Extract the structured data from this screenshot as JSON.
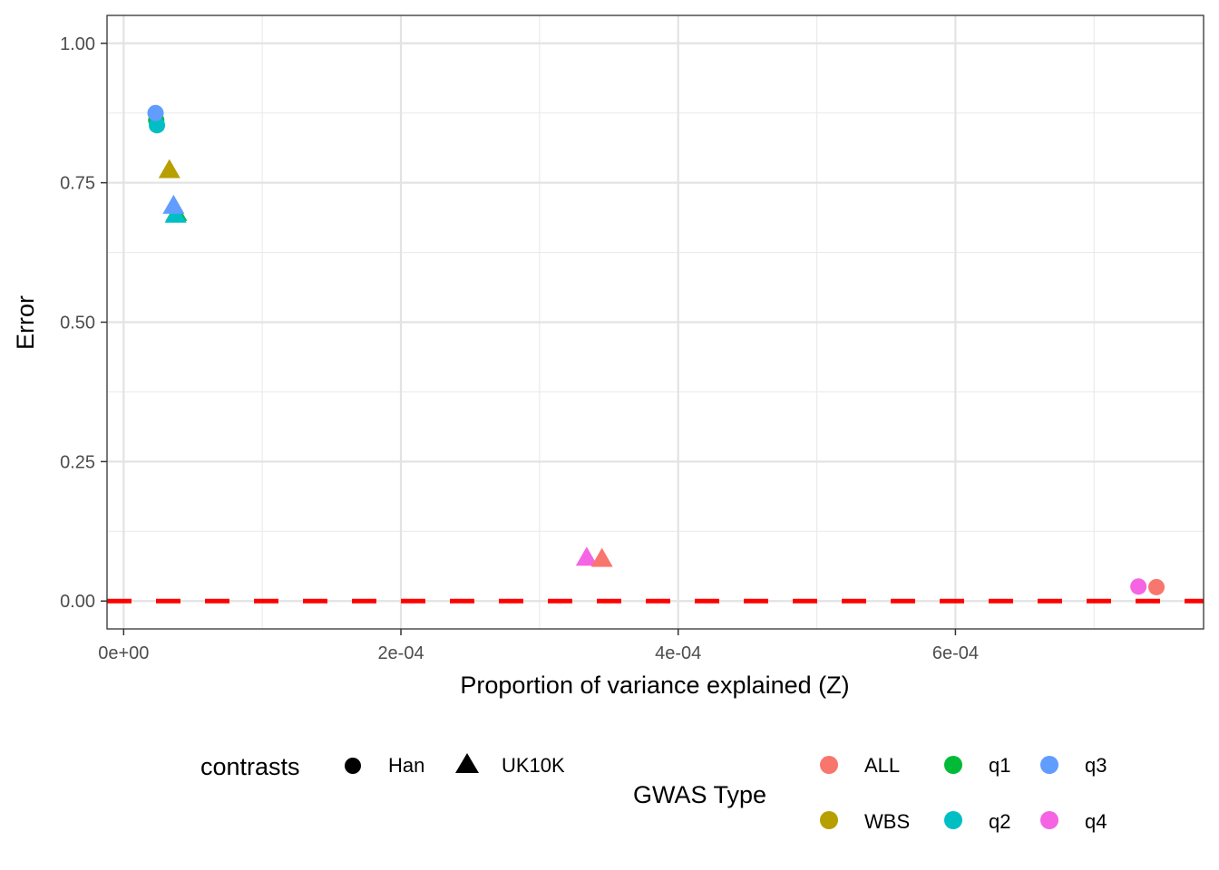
{
  "chart_data": {
    "type": "scatter",
    "xlabel": "Proportion of variance explained (Z)",
    "ylabel": "Error",
    "xlim": [
      -1.2e-05,
      0.000779
    ],
    "ylim": [
      -0.05,
      1.05
    ],
    "x_ticks": [
      0,
      0.0002,
      0.0004,
      0.0006
    ],
    "x_tick_labels": [
      "0e+00",
      "2e-04",
      "4e-04",
      "6e-04"
    ],
    "x_minor_ticks": [
      0.0001,
      0.0003,
      0.0005,
      0.0007
    ],
    "y_ticks": [
      0,
      0.25,
      0.5,
      0.75,
      1.0
    ],
    "y_tick_labels": [
      "0.00",
      "0.25",
      "0.50",
      "0.75",
      "1.00"
    ],
    "y_minor_ticks": [
      0.125,
      0.375,
      0.625,
      0.875
    ],
    "grid": true,
    "reference_line": {
      "y": 0,
      "color": "#FF0000",
      "style": "dashed"
    },
    "legend_position": "bottom",
    "shape_legend": {
      "title": "contrasts",
      "items": [
        {
          "label": "Han",
          "shape": "circle"
        },
        {
          "label": "UK10K",
          "shape": "triangle"
        }
      ]
    },
    "color_legend": {
      "title": "GWAS Type",
      "items": [
        {
          "label": "ALL",
          "color": "#F8766D"
        },
        {
          "label": "q1",
          "color": "#00BA38"
        },
        {
          "label": "q3",
          "color": "#619CFF"
        },
        {
          "label": "WBS",
          "color": "#B79F00"
        },
        {
          "label": "q2",
          "color": "#00BFC4"
        },
        {
          "label": "q4",
          "color": "#F564E3"
        }
      ]
    },
    "points": [
      {
        "x": 2.35e-05,
        "y": 0.862,
        "type": "q1",
        "contrast": "Han"
      },
      {
        "x": 2.4e-05,
        "y": 0.853,
        "type": "q2",
        "contrast": "Han"
      },
      {
        "x": 2.3e-05,
        "y": 0.875,
        "type": "q3",
        "contrast": "Han"
      },
      {
        "x": 3.3e-05,
        "y": 0.773,
        "type": "WBS",
        "contrast": "UK10K"
      },
      {
        "x": 3.8e-05,
        "y": 0.696,
        "type": "q1",
        "contrast": "UK10K"
      },
      {
        "x": 3.75e-05,
        "y": 0.693,
        "type": "q2",
        "contrast": "UK10K"
      },
      {
        "x": 3.6e-05,
        "y": 0.709,
        "type": "q3",
        "contrast": "UK10K"
      },
      {
        "x": 0.000334,
        "y": 0.078,
        "type": "q4",
        "contrast": "UK10K"
      },
      {
        "x": 0.000345,
        "y": 0.076,
        "type": "ALL",
        "contrast": "UK10K"
      },
      {
        "x": 0.000732,
        "y": 0.026,
        "type": "q4",
        "contrast": "Han"
      },
      {
        "x": 0.000745,
        "y": 0.025,
        "type": "ALL",
        "contrast": "Han"
      }
    ]
  }
}
